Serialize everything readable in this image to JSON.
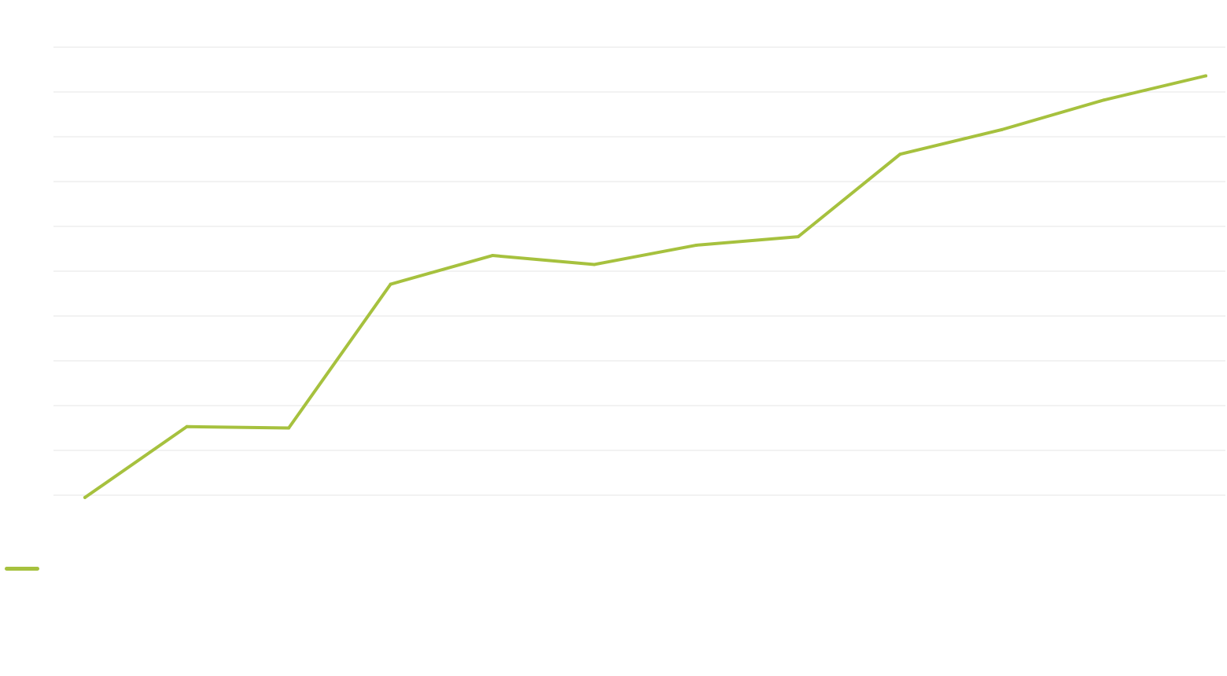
{
  "chart_data": {
    "type": "line",
    "title": "",
    "xlabel": "",
    "ylabel": "",
    "grid": true,
    "ylim": [
      0,
      10
    ],
    "legend_position": "bottom-left",
    "colors": {
      "series": "#a6c13e",
      "grid": "#e6e6e6"
    },
    "x": [
      1,
      2,
      3,
      4,
      5,
      6,
      7,
      8,
      9,
      10,
      11,
      12
    ],
    "series": [
      {
        "name": "",
        "values": [
          -0.05,
          1.53,
          1.5,
          4.71,
          5.35,
          5.15,
          5.58,
          5.77,
          7.61,
          8.16,
          8.82,
          9.36
        ]
      }
    ]
  }
}
